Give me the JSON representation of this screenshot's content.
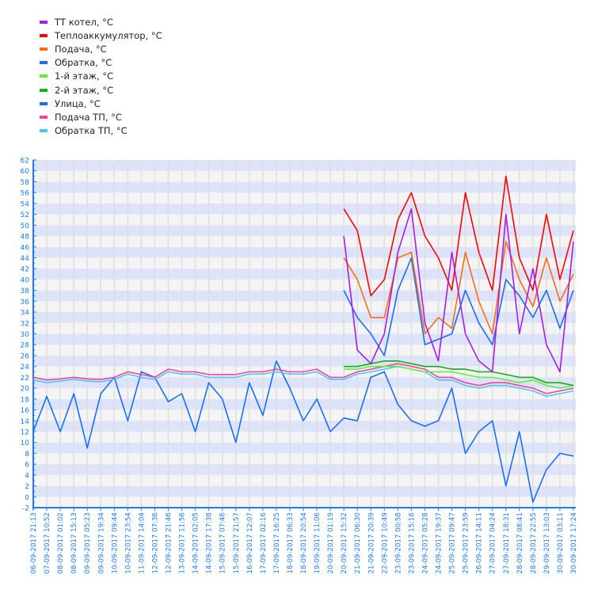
{
  "chart_data": {
    "type": "line",
    "title": "",
    "xlabel": "",
    "ylabel": "",
    "ylim": [
      -2,
      62
    ],
    "yticks": [
      -2,
      0,
      2,
      4,
      6,
      8,
      10,
      12,
      14,
      16,
      18,
      20,
      22,
      24,
      26,
      28,
      30,
      32,
      34,
      36,
      38,
      40,
      42,
      44,
      46,
      48,
      50,
      52,
      54,
      56,
      58,
      60,
      62
    ],
    "grid": true,
    "legend_placement": "top-left",
    "background_stripes": [
      "#dde4fa",
      "#f4f4f4"
    ],
    "axis_color": "#1e7bff",
    "categories": [
      "06-09-2017 21:13",
      "07-09-2017 10:52",
      "08-09-2017 01:02",
      "08-09-2017 15:13",
      "09-09-2017 05:23",
      "09-09-2017 19:34",
      "10-09-2017 09:44",
      "10-09-2017 23:54",
      "11-09-2017 14:04",
      "12-09-2017 07:36",
      "12-09-2017 21:46",
      "13-09-2017 11:56",
      "14-09-2017 02:05",
      "14-09-2017 17:38",
      "15-09-2017 07:46",
      "15-09-2017 21:57",
      "16-09-2017 12:07",
      "17-09-2017 02:16",
      "17-09-2017 16:25",
      "18-09-2017 06:33",
      "18-09-2017 20:54",
      "19-09-2017 11:06",
      "20-09-2017 01:19",
      "20-09-2017 15:32",
      "21-09-2017 06:30",
      "21-09-2017 20:39",
      "22-09-2017 10:49",
      "23-09-2017 00:58",
      "23-09-2017 15:16",
      "24-09-2017 05:28",
      "24-09-2017 19:37",
      "25-09-2017 09:47",
      "25-09-2017 23:59",
      "26-09-2017 14:11",
      "27-09-2017 04:24",
      "27-09-2017 18:31",
      "28-09-2017 08:41",
      "28-09-2017 22:55",
      "29-09-2017 13:03",
      "30-09-2017 03:11",
      "30-09-2017 17:24"
    ],
    "series": [
      {
        "name": "ТТ котел, °C",
        "color": "#a61ce8",
        "values": [
          null,
          null,
          null,
          null,
          null,
          null,
          null,
          null,
          null,
          null,
          null,
          null,
          null,
          null,
          null,
          null,
          null,
          null,
          null,
          null,
          null,
          null,
          null,
          48,
          27,
          24.5,
          30,
          45,
          53,
          32,
          25,
          45,
          30,
          25,
          23,
          52,
          30,
          42,
          28,
          23,
          47
        ]
      },
      {
        "name": "Теплоаккумулятор, °C",
        "color": "#ff0000",
        "values": [
          null,
          null,
          null,
          null,
          null,
          null,
          null,
          null,
          null,
          null,
          null,
          null,
          null,
          null,
          null,
          null,
          null,
          null,
          null,
          null,
          null,
          null,
          null,
          53,
          49,
          37,
          40,
          51,
          56,
          48,
          44,
          38,
          56,
          45,
          38,
          59,
          44,
          38,
          52,
          40,
          49
        ]
      },
      {
        "name": "Подача, °C",
        "color": "#ff6a13",
        "values": [
          null,
          null,
          null,
          null,
          null,
          null,
          null,
          null,
          null,
          null,
          null,
          null,
          null,
          null,
          null,
          null,
          null,
          null,
          null,
          null,
          null,
          null,
          null,
          44,
          40,
          33,
          33,
          44,
          45,
          30,
          33,
          31,
          45,
          36,
          30,
          47,
          40,
          35,
          44,
          36,
          41
        ]
      },
      {
        "name": "Обратка, °C",
        "color": "#1a6cff",
        "values": [
          null,
          null,
          null,
          null,
          null,
          null,
          null,
          null,
          null,
          null,
          null,
          null,
          null,
          null,
          null,
          null,
          null,
          null,
          null,
          null,
          null,
          null,
          null,
          38,
          33,
          30,
          26,
          38,
          44,
          28,
          29,
          30,
          38,
          32,
          28,
          40,
          37,
          33,
          38,
          31,
          38
        ]
      },
      {
        "name": "1-й этаж, °C",
        "color": "#5cf23c",
        "values": [
          null,
          null,
          null,
          null,
          null,
          null,
          null,
          null,
          null,
          null,
          null,
          null,
          null,
          null,
          null,
          null,
          null,
          null,
          null,
          null,
          null,
          null,
          null,
          23.5,
          23.5,
          24,
          24,
          24,
          23.5,
          23,
          23,
          23,
          22.5,
          22,
          22,
          21.5,
          21,
          21.5,
          20.5,
          20,
          20.5
        ]
      },
      {
        "name": "2-й этаж, °C",
        "color": "#12b012",
        "values": [
          null,
          null,
          null,
          null,
          null,
          null,
          null,
          null,
          null,
          null,
          null,
          null,
          null,
          null,
          null,
          null,
          null,
          null,
          null,
          null,
          null,
          null,
          null,
          24,
          24,
          24.5,
          25,
          25,
          24.5,
          24,
          24,
          23.5,
          23.5,
          23,
          23,
          22.5,
          22,
          22,
          21,
          21,
          20.5
        ]
      },
      {
        "name": "Улица, °C",
        "color": "#1a6cff",
        "values": [
          12,
          18.5,
          12,
          19,
          9,
          19,
          22,
          14,
          23,
          22,
          17.5,
          19,
          12,
          21,
          18,
          10,
          21,
          15,
          25,
          20,
          14,
          18,
          12,
          14.5,
          14,
          22,
          23,
          17,
          14,
          13,
          14,
          20,
          8,
          12,
          14,
          2,
          12,
          -1,
          5,
          8,
          7.5
        ]
      },
      {
        "name": "Подача ТП, °C",
        "color": "#ff3f9f",
        "values": [
          22,
          21.5,
          21.7,
          22,
          21.7,
          21.6,
          22,
          23,
          22.5,
          22,
          23.5,
          23,
          23,
          22.5,
          22.5,
          22.5,
          23,
          23,
          23.5,
          23,
          23,
          23.5,
          22,
          22,
          23,
          23.5,
          24,
          24.5,
          24,
          23.5,
          22,
          22,
          21,
          20.5,
          21,
          21,
          20.5,
          20,
          19,
          19.5,
          20
        ]
      },
      {
        "name": "Обратка ТП, °C",
        "color": "#4cc8f5",
        "values": [
          21.5,
          21,
          21.3,
          21.6,
          21.3,
          21.2,
          21.6,
          22.6,
          22,
          21.6,
          23,
          22.6,
          22.6,
          22,
          22,
          22,
          22.6,
          22.6,
          23,
          22.6,
          22.6,
          23,
          21.6,
          21.6,
          22.6,
          23,
          23.5,
          24,
          23.5,
          23,
          21.5,
          21.5,
          20.5,
          20,
          20.5,
          20.5,
          20,
          19.5,
          18.5,
          19,
          19.5
        ]
      }
    ]
  }
}
